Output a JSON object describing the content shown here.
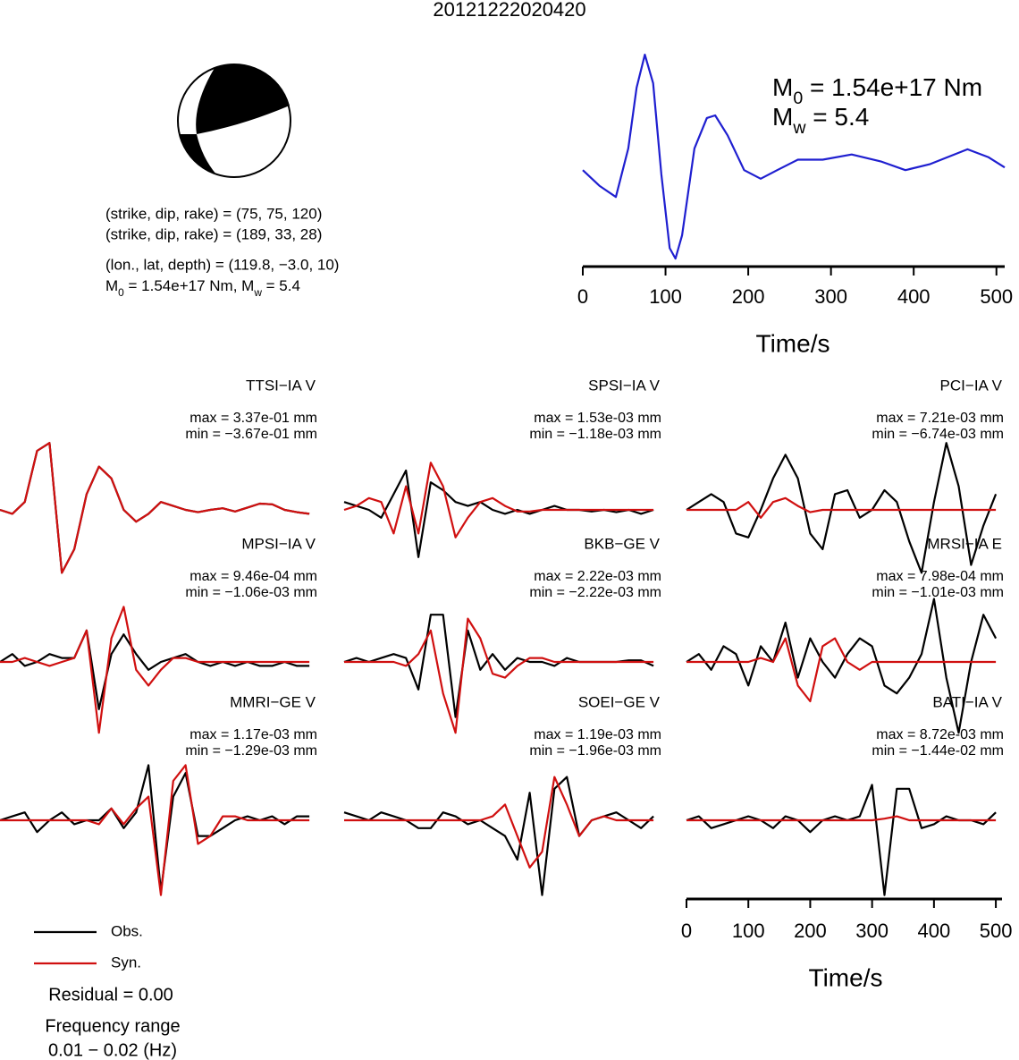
{
  "title": "20121222020420",
  "mechanism": {
    "lines": [
      "(strike, dip, rake) = (75, 75, 120)",
      "(strike, dip, rake) = (189, 33, 28)",
      "(lon., lat, depth) = (119.8, −3.0, 10)"
    ],
    "moment": [
      {
        "text": "M"
      },
      {
        "sub": "0"
      },
      {
        "text": " = 1.54e+17 Nm, M"
      },
      {
        "sub": "w"
      },
      {
        "text": " = 5.4"
      }
    ]
  },
  "chart_data": [
    {
      "type": "line",
      "color": "#1f1fd0",
      "xlabel": "Time/s",
      "xlim": [
        0,
        510
      ],
      "xticks": [
        0,
        100,
        200,
        300,
        400,
        500
      ],
      "annotations": [
        [
          {
            "text": "M"
          },
          {
            "sub": "0"
          },
          {
            "text": " = 1.54e+17 Nm"
          }
        ],
        [
          {
            "text": "M"
          },
          {
            "sub": "w"
          },
          {
            "text": " = 5.4"
          }
        ]
      ],
      "x": [
        0,
        20,
        40,
        55,
        65,
        75,
        85,
        95,
        105,
        112,
        120,
        135,
        150,
        160,
        175,
        195,
        215,
        235,
        260,
        290,
        325,
        360,
        390,
        420,
        465,
        490,
        510
      ],
      "values": [
        0.05,
        -0.13,
        -0.26,
        0.3,
        1.0,
        1.38,
        1.05,
        0,
        -0.85,
        -0.97,
        -0.7,
        0.3,
        0.65,
        0.68,
        0.45,
        0.05,
        -0.05,
        0.05,
        0.17,
        0.17,
        0.23,
        0.15,
        0.05,
        0.12,
        0.29,
        0.2,
        0.08
      ]
    },
    {
      "type": "waveforms",
      "xlabel": "Time/s",
      "xlim": [
        0,
        510
      ],
      "xticks": [
        0,
        100,
        200,
        300,
        400,
        500
      ],
      "x": [
        0,
        20,
        40,
        60,
        80,
        100,
        120,
        140,
        160,
        180,
        200,
        220,
        240,
        260,
        280,
        300,
        320,
        340,
        360,
        380,
        400,
        420,
        440,
        460,
        480,
        500
      ],
      "legend": [
        {
          "name": "Obs.",
          "color": "#000000"
        },
        {
          "name": "Syn.",
          "color": "#d01010"
        }
      ],
      "residual": "Residual = 0.00",
      "frequency": [
        "Frequency range",
        "0.01 − 0.02 (Hz)"
      ],
      "panels": [
        {
          "title": "TTSI−IA V",
          "max": "max = 3.37e-01 mm",
          "min": "min = −3.67e-01 mm",
          "obs": [
            0,
            -0.05,
            0.1,
            0.75,
            0.85,
            -0.8,
            -0.5,
            0.2,
            0.55,
            0.4,
            0.0,
            -0.15,
            -0.05,
            0.1,
            0.05,
            0.0,
            -0.03,
            0.0,
            0.02,
            -0.02,
            0.03,
            0.08,
            0.07,
            0.0,
            -0.03,
            -0.05
          ],
          "syn": [
            0,
            -0.05,
            0.1,
            0.75,
            0.85,
            -0.8,
            -0.5,
            0.2,
            0.55,
            0.4,
            0.0,
            -0.15,
            -0.05,
            0.1,
            0.05,
            0.0,
            -0.03,
            0.0,
            0.02,
            -0.02,
            0.03,
            0.08,
            0.07,
            0.0,
            -0.03,
            -0.05
          ]
        },
        {
          "title": "SPSI−IA V",
          "max": "max = 1.53e-03 mm",
          "min": "min = −1.18e-03 mm",
          "obs": [
            0.1,
            0.05,
            0.0,
            -0.1,
            0.2,
            0.5,
            -0.6,
            0.35,
            0.25,
            0.1,
            0.05,
            0.1,
            0.0,
            -0.05,
            0.0,
            -0.05,
            0.0,
            0.05,
            0.0,
            0.0,
            -0.02,
            0.0,
            -0.03,
            0.0,
            -0.05,
            0.0
          ],
          "syn": [
            0.0,
            0.05,
            0.15,
            0.1,
            -0.3,
            0.3,
            -0.3,
            0.6,
            0.3,
            -0.35,
            -0.1,
            0.1,
            0.15,
            0.05,
            -0.02,
            -0.02,
            0,
            0,
            0,
            0,
            0,
            0,
            0,
            0,
            0,
            0
          ]
        },
        {
          "title": "PCI−IA V",
          "max": "max = 7.21e-03 mm",
          "min": "min = −6.74e-03 mm",
          "obs": [
            0.0,
            0.1,
            0.2,
            0.1,
            -0.3,
            -0.35,
            0.0,
            0.4,
            0.7,
            0.4,
            -0.3,
            -0.5,
            0.2,
            0.25,
            -0.1,
            0.0,
            0.25,
            0.1,
            -0.4,
            -0.8,
            0.1,
            0.85,
            0.3,
            -0.7,
            -0.2,
            0.2
          ],
          "syn": [
            0,
            0,
            0,
            0,
            0,
            0.1,
            -0.1,
            0.1,
            0.15,
            0.05,
            -0.03,
            0,
            0,
            0,
            0,
            0,
            0,
            0,
            0,
            0,
            0,
            0,
            0,
            0,
            0,
            0
          ]
        },
        {
          "title": "MPSI−IA V",
          "max": "max = 9.46e-04 mm",
          "min": "min = −1.06e-03 mm",
          "obs": [
            0.0,
            0.1,
            -0.05,
            0.0,
            0.1,
            0.05,
            0.05,
            0.4,
            -0.6,
            0.1,
            0.35,
            0.1,
            -0.1,
            0.0,
            0.05,
            0.1,
            0.0,
            -0.05,
            0.0,
            -0.05,
            0.0,
            -0.05,
            -0.05,
            0.0,
            -0.05,
            -0.05
          ],
          "syn": [
            0,
            0,
            0.05,
            0,
            -0.05,
            0,
            0.05,
            0.4,
            -0.9,
            0.3,
            0.7,
            -0.1,
            -0.3,
            -0.1,
            0.05,
            0.05,
            0,
            0,
            0,
            0,
            0,
            0,
            0,
            0,
            0,
            0
          ]
        },
        {
          "title": "BKB−GE V",
          "max": "max = 2.22e-03 mm",
          "min": "min = −2.22e-03 mm",
          "obs": [
            0.0,
            0.05,
            0.0,
            0.05,
            0.1,
            0.05,
            -0.35,
            0.6,
            0.6,
            -0.7,
            0.4,
            -0.1,
            0.1,
            -0.1,
            0.05,
            0.0,
            0.0,
            -0.05,
            0.05,
            0,
            0,
            0,
            0,
            0.02,
            0.02,
            -0.05
          ],
          "syn": [
            0,
            0,
            0,
            0,
            0,
            -0.05,
            0.1,
            0.4,
            -0.4,
            -0.9,
            0.55,
            0.3,
            -0.15,
            -0.2,
            -0.05,
            0.05,
            0.05,
            0,
            0,
            0,
            0,
            0,
            0,
            0,
            0,
            0
          ]
        },
        {
          "title": "MRSI−IA E",
          "max": "max = 7.98e-04 mm",
          "min": "min = −1.01e-03 mm",
          "obs": [
            0.0,
            0.1,
            -0.1,
            0.2,
            0.1,
            -0.3,
            0.2,
            0.0,
            0.5,
            -0.2,
            0.3,
            0.0,
            -0.2,
            0.1,
            0.3,
            0.2,
            -0.3,
            -0.4,
            -0.2,
            0.1,
            0.8,
            -0.2,
            -0.9,
            0.0,
            0.6,
            0.3
          ],
          "syn": [
            0,
            0,
            0,
            0,
            0,
            0,
            0.05,
            0,
            0.3,
            -0.3,
            -0.5,
            0.2,
            0.3,
            0,
            -0.1,
            0,
            0,
            0,
            0,
            0,
            0,
            0,
            0,
            0,
            0,
            0
          ]
        },
        {
          "title": "MMRI−GE V",
          "max": "max = 1.17e-03 mm",
          "min": "min = −1.29e-03 mm",
          "obs": [
            0.0,
            0.05,
            0.1,
            -0.15,
            0.0,
            0.1,
            -0.05,
            0.0,
            0.0,
            0.15,
            -0.1,
            0.1,
            0.7,
            -0.9,
            0.3,
            0.6,
            -0.2,
            -0.2,
            -0.1,
            0.0,
            0.05,
            0.0,
            0.05,
            -0.05,
            0.05,
            0.05
          ],
          "syn": [
            0,
            0,
            0,
            0,
            0,
            0,
            0,
            0,
            -0.05,
            0.15,
            -0.05,
            0.15,
            0.3,
            -0.95,
            0.5,
            0.7,
            -0.3,
            -0.2,
            0.05,
            0.05,
            0,
            0,
            0,
            0,
            0,
            0
          ]
        },
        {
          "title": "SOEI−GE V",
          "max": "max = 1.19e-03 mm",
          "min": "min = −1.96e-03 mm",
          "obs": [
            0.1,
            0.05,
            0.0,
            0.1,
            0.05,
            0.0,
            -0.1,
            -0.1,
            0.1,
            0.05,
            -0.05,
            0.0,
            -0.1,
            -0.2,
            -0.5,
            0.35,
            -0.95,
            0.4,
            0.55,
            -0.2,
            0.0,
            0.05,
            0.1,
            0.0,
            -0.1,
            0.05
          ],
          "syn": [
            0,
            0,
            0,
            0,
            0,
            0,
            0,
            0,
            0,
            0,
            0,
            0,
            0.05,
            0.2,
            -0.2,
            -0.6,
            -0.4,
            0.55,
            0.2,
            -0.2,
            0,
            0.05,
            0,
            0,
            0,
            0
          ]
        },
        {
          "title": "BATI−IA V",
          "max": "max = 8.72e-03 mm",
          "min": "min = −1.44e-02 mm",
          "obs": [
            0.0,
            0.05,
            -0.1,
            -0.05,
            0.0,
            0.05,
            0.0,
            -0.1,
            0.05,
            0.0,
            -0.15,
            0.0,
            0.05,
            0.0,
            0.05,
            0.45,
            -0.95,
            0.4,
            0.4,
            -0.1,
            -0.05,
            0.05,
            0.0,
            0.0,
            -0.05,
            0.1
          ],
          "syn": [
            0,
            0,
            0,
            0,
            0,
            0,
            0,
            0,
            0,
            0,
            0,
            0,
            0,
            0,
            0,
            0,
            0.02,
            0.05,
            0,
            0,
            0,
            0,
            0,
            0,
            0,
            0
          ]
        }
      ]
    }
  ]
}
